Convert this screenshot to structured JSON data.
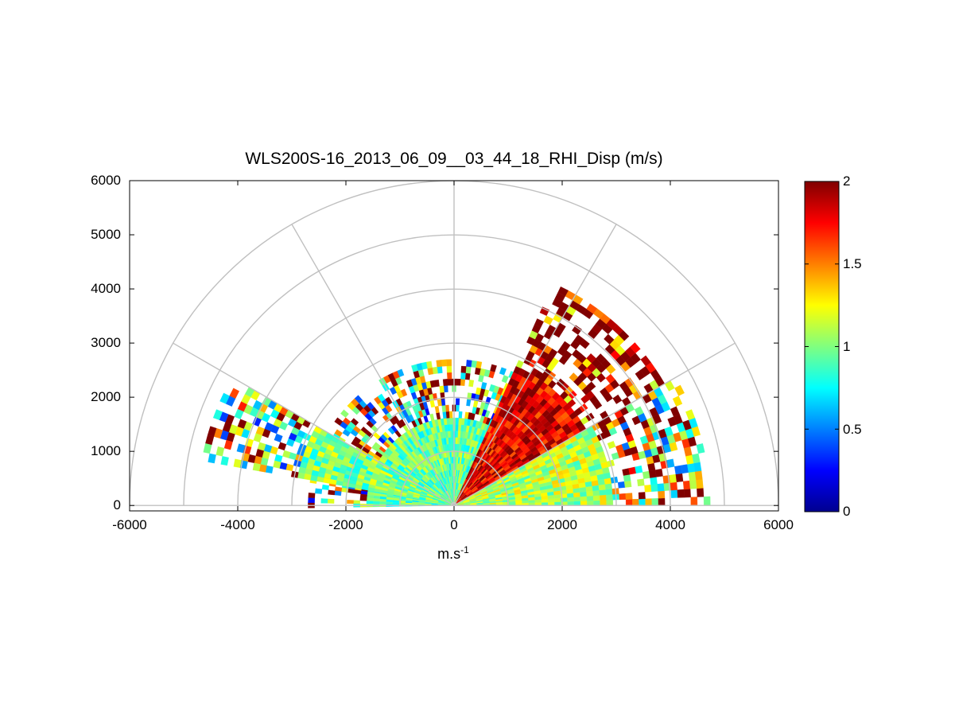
{
  "chart_data": {
    "type": "heatmap",
    "subtype": "polar-rhi-sector",
    "title": "WLS200S-16_2013_06_09__03_44_18_RHI_Disp (m/s)",
    "xlabel": "m.s",
    "xlabel_superscript": "-1",
    "ylabel": "",
    "xlim": [
      -6000,
      6000
    ],
    "ylim": [
      -100,
      6000
    ],
    "xticks": [
      "-6000",
      "-4000",
      "-2000",
      "0",
      "2000",
      "4000",
      "6000"
    ],
    "yticks": [
      "0",
      "1000",
      "2000",
      "3000",
      "4000",
      "5000",
      "6000"
    ],
    "colorbar": {
      "colormap": "jet",
      "range": [
        0,
        2
      ],
      "ticks": [
        "0",
        "0.5",
        "1",
        "1.5",
        "2"
      ]
    },
    "polar_grid": {
      "range_rings": [
        1000,
        2000,
        3000,
        4000,
        5000,
        6000
      ],
      "spokes_deg": [
        0,
        30,
        60,
        90,
        120,
        150,
        180
      ]
    },
    "grid": true,
    "sectors": [
      {
        "az_from": 125,
        "az_to": 180,
        "max_range": 2650,
        "typical_value": 0.95
      },
      {
        "az_from": 55,
        "az_to": 125,
        "max_range": 2650,
        "typical_value": 0.95
      },
      {
        "az_from": 30,
        "az_to": 65,
        "max_range": 4500,
        "typical_value": 1.8
      },
      {
        "az_from": 0,
        "az_to": 30,
        "max_range": 4700,
        "typical_value": 1.1
      },
      {
        "az_from": 150,
        "az_to": 170,
        "max_range": 4700,
        "typical_value": 1.0
      }
    ],
    "colors": {
      "grid": "#c0c0c0",
      "axes": "#000000",
      "background": "#ffffff"
    }
  }
}
